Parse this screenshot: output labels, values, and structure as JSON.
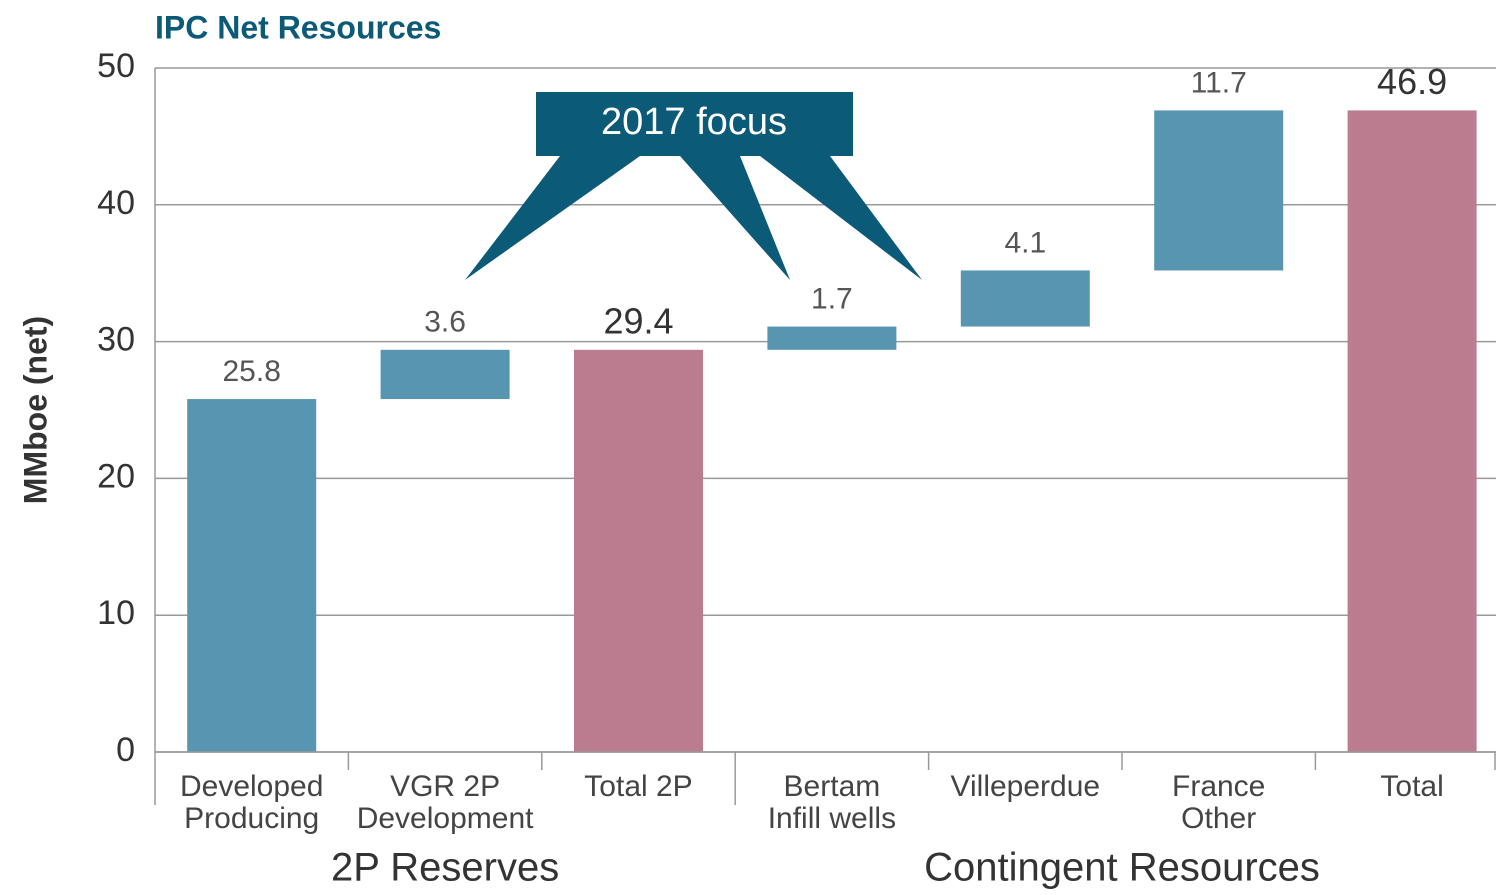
{
  "chart_data": {
    "type": "waterfall",
    "title": "IPC Net Resources",
    "y_label": "MMboe (net)",
    "categories": [
      [
        "Developed",
        "Producing"
      ],
      [
        "VGR 2P",
        "Development"
      ],
      [
        "Total 2P"
      ],
      [
        "Bertam",
        "Infill wells"
      ],
      [
        "Villeperdue"
      ],
      [
        "France",
        "Other"
      ],
      [
        "Total"
      ]
    ],
    "values": [
      25.8,
      3.6,
      29.4,
      1.7,
      4.1,
      11.7,
      46.9
    ],
    "bar_types": [
      "delta",
      "delta",
      "total",
      "delta",
      "delta",
      "delta",
      "total"
    ],
    "colors": {
      "delta": "#5795b0",
      "total": "#bb7c8f"
    },
    "groups": [
      {
        "label": "2P Reserves",
        "start": 0,
        "end": 2
      },
      {
        "label": "Contingent Resources",
        "start": 3,
        "end": 6
      }
    ],
    "annotation": "2017 focus",
    "ylim": [
      0,
      50
    ],
    "yticks": [
      0,
      10,
      20,
      30,
      40,
      50
    ],
    "grid": true
  }
}
